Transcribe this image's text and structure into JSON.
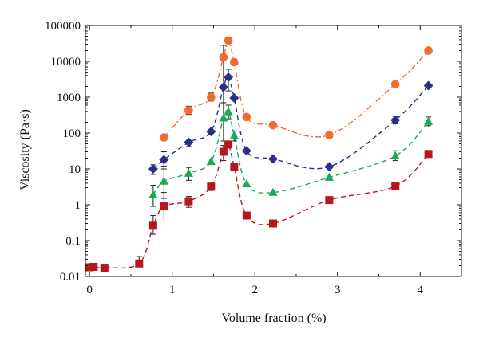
{
  "chart_data": {
    "type": "scatter",
    "title": "",
    "xlabel": "Volume fraction (%)",
    "ylabel": "Viscosity (Pa·s)",
    "x_scale": "linear",
    "y_scale": "log",
    "xlim": [
      -0.05,
      4.5
    ],
    "ylim": [
      0.01,
      100000
    ],
    "x_ticks": [
      0,
      1,
      2,
      3,
      4
    ],
    "x_tick_labels": [
      "0",
      "1",
      "2",
      "3",
      "4"
    ],
    "y_ticks": [
      0.01,
      0.1,
      1,
      10,
      100,
      1000,
      10000,
      100000
    ],
    "y_tick_labels": [
      "0.01",
      "0.1",
      "1",
      "10",
      "100",
      "1000",
      "10000",
      "100000"
    ],
    "grid": false,
    "legend": "none",
    "series": [
      {
        "marker": "circle",
        "color": "#f26a2e",
        "line": "dash-dot",
        "points": [
          {
            "x": 0.9,
            "y": 75
          },
          {
            "x": 1.2,
            "y": 430
          },
          {
            "x": 1.47,
            "y": 1000
          },
          {
            "x": 1.62,
            "y": 13000
          },
          {
            "x": 1.68,
            "y": 38000
          },
          {
            "x": 1.75,
            "y": 9500
          },
          {
            "x": 1.9,
            "y": 280
          },
          {
            "x": 2.22,
            "y": 165
          },
          {
            "x": 2.9,
            "y": 88
          },
          {
            "x": 3.7,
            "y": 2300
          },
          {
            "x": 4.1,
            "y": 20000
          }
        ]
      },
      {
        "marker": "diamond",
        "color": "#2b2f86",
        "line": "dashed",
        "points": [
          {
            "x": 0.77,
            "y": 10
          },
          {
            "x": 0.9,
            "y": 18
          },
          {
            "x": 1.2,
            "y": 55
          },
          {
            "x": 1.47,
            "y": 110
          },
          {
            "x": 1.62,
            "y": 1900
          },
          {
            "x": 1.68,
            "y": 3600
          },
          {
            "x": 1.75,
            "y": 950
          },
          {
            "x": 1.9,
            "y": 32
          },
          {
            "x": 2.22,
            "y": 19
          },
          {
            "x": 2.9,
            "y": 11.5
          },
          {
            "x": 3.7,
            "y": 230
          },
          {
            "x": 4.1,
            "y": 2100
          }
        ]
      },
      {
        "marker": "triangle",
        "color": "#1aa85a",
        "line": "dashed",
        "points": [
          {
            "x": 0.77,
            "y": 1.9
          },
          {
            "x": 0.9,
            "y": 4.5
          },
          {
            "x": 1.2,
            "y": 7.5
          },
          {
            "x": 1.47,
            "y": 16
          },
          {
            "x": 1.62,
            "y": 260
          },
          {
            "x": 1.68,
            "y": 390
          },
          {
            "x": 1.75,
            "y": 85
          },
          {
            "x": 1.9,
            "y": 3.8
          },
          {
            "x": 2.22,
            "y": 2.2
          },
          {
            "x": 2.9,
            "y": 5.8
          },
          {
            "x": 3.7,
            "y": 23
          },
          {
            "x": 4.1,
            "y": 210
          }
        ]
      },
      {
        "marker": "square",
        "color": "#b8161d",
        "line": "dashed",
        "points": [
          {
            "x": 0.0,
            "y": 0.018
          },
          {
            "x": 0.05,
            "y": 0.0185
          },
          {
            "x": 0.18,
            "y": 0.0175
          },
          {
            "x": 0.6,
            "y": 0.023
          },
          {
            "x": 0.77,
            "y": 0.26
          },
          {
            "x": 0.9,
            "y": 0.9
          },
          {
            "x": 1.2,
            "y": 1.25
          },
          {
            "x": 1.47,
            "y": 3.2
          },
          {
            "x": 1.62,
            "y": 30
          },
          {
            "x": 1.68,
            "y": 48
          },
          {
            "x": 1.75,
            "y": 11.5
          },
          {
            "x": 1.9,
            "y": 0.5
          },
          {
            "x": 2.22,
            "y": 0.3
          },
          {
            "x": 2.9,
            "y": 1.35
          },
          {
            "x": 3.7,
            "y": 3.3
          },
          {
            "x": 4.1,
            "y": 26
          }
        ]
      }
    ],
    "error_bars": [
      {
        "x": 0.6,
        "low": 0.019,
        "high": 0.036
      },
      {
        "x": 0.77,
        "low": 0.15,
        "high": 0.5
      },
      {
        "x": 0.77,
        "low": 0.9,
        "high": 3.5
      },
      {
        "x": 0.77,
        "low": 7,
        "high": 13
      },
      {
        "x": 0.9,
        "low": 0.35,
        "high": 2.2
      },
      {
        "x": 0.9,
        "low": 1.5,
        "high": 12
      },
      {
        "x": 0.9,
        "low": 10,
        "high": 30
      },
      {
        "x": 1.2,
        "low": 0.85,
        "high": 1.7
      },
      {
        "x": 1.2,
        "low": 4.8,
        "high": 11
      },
      {
        "x": 1.2,
        "low": 42,
        "high": 68
      },
      {
        "x": 1.2,
        "low": 330,
        "high": 560
      },
      {
        "x": 1.47,
        "low": 2.5,
        "high": 4
      },
      {
        "x": 1.47,
        "low": 780,
        "high": 1300
      },
      {
        "x": 1.62,
        "low": 17,
        "high": 45
      },
      {
        "x": 1.62,
        "low": 60,
        "high": 700
      },
      {
        "x": 1.62,
        "low": 700,
        "high": 28000
      },
      {
        "x": 1.68,
        "low": 250,
        "high": 600
      },
      {
        "x": 1.68,
        "low": 1500,
        "high": 6000
      },
      {
        "x": 1.75,
        "low": 60,
        "high": 115
      },
      {
        "x": 3.7,
        "low": 17,
        "high": 32
      },
      {
        "x": 3.7,
        "low": 180,
        "high": 290
      },
      {
        "x": 4.1,
        "low": 160,
        "high": 280
      }
    ]
  }
}
